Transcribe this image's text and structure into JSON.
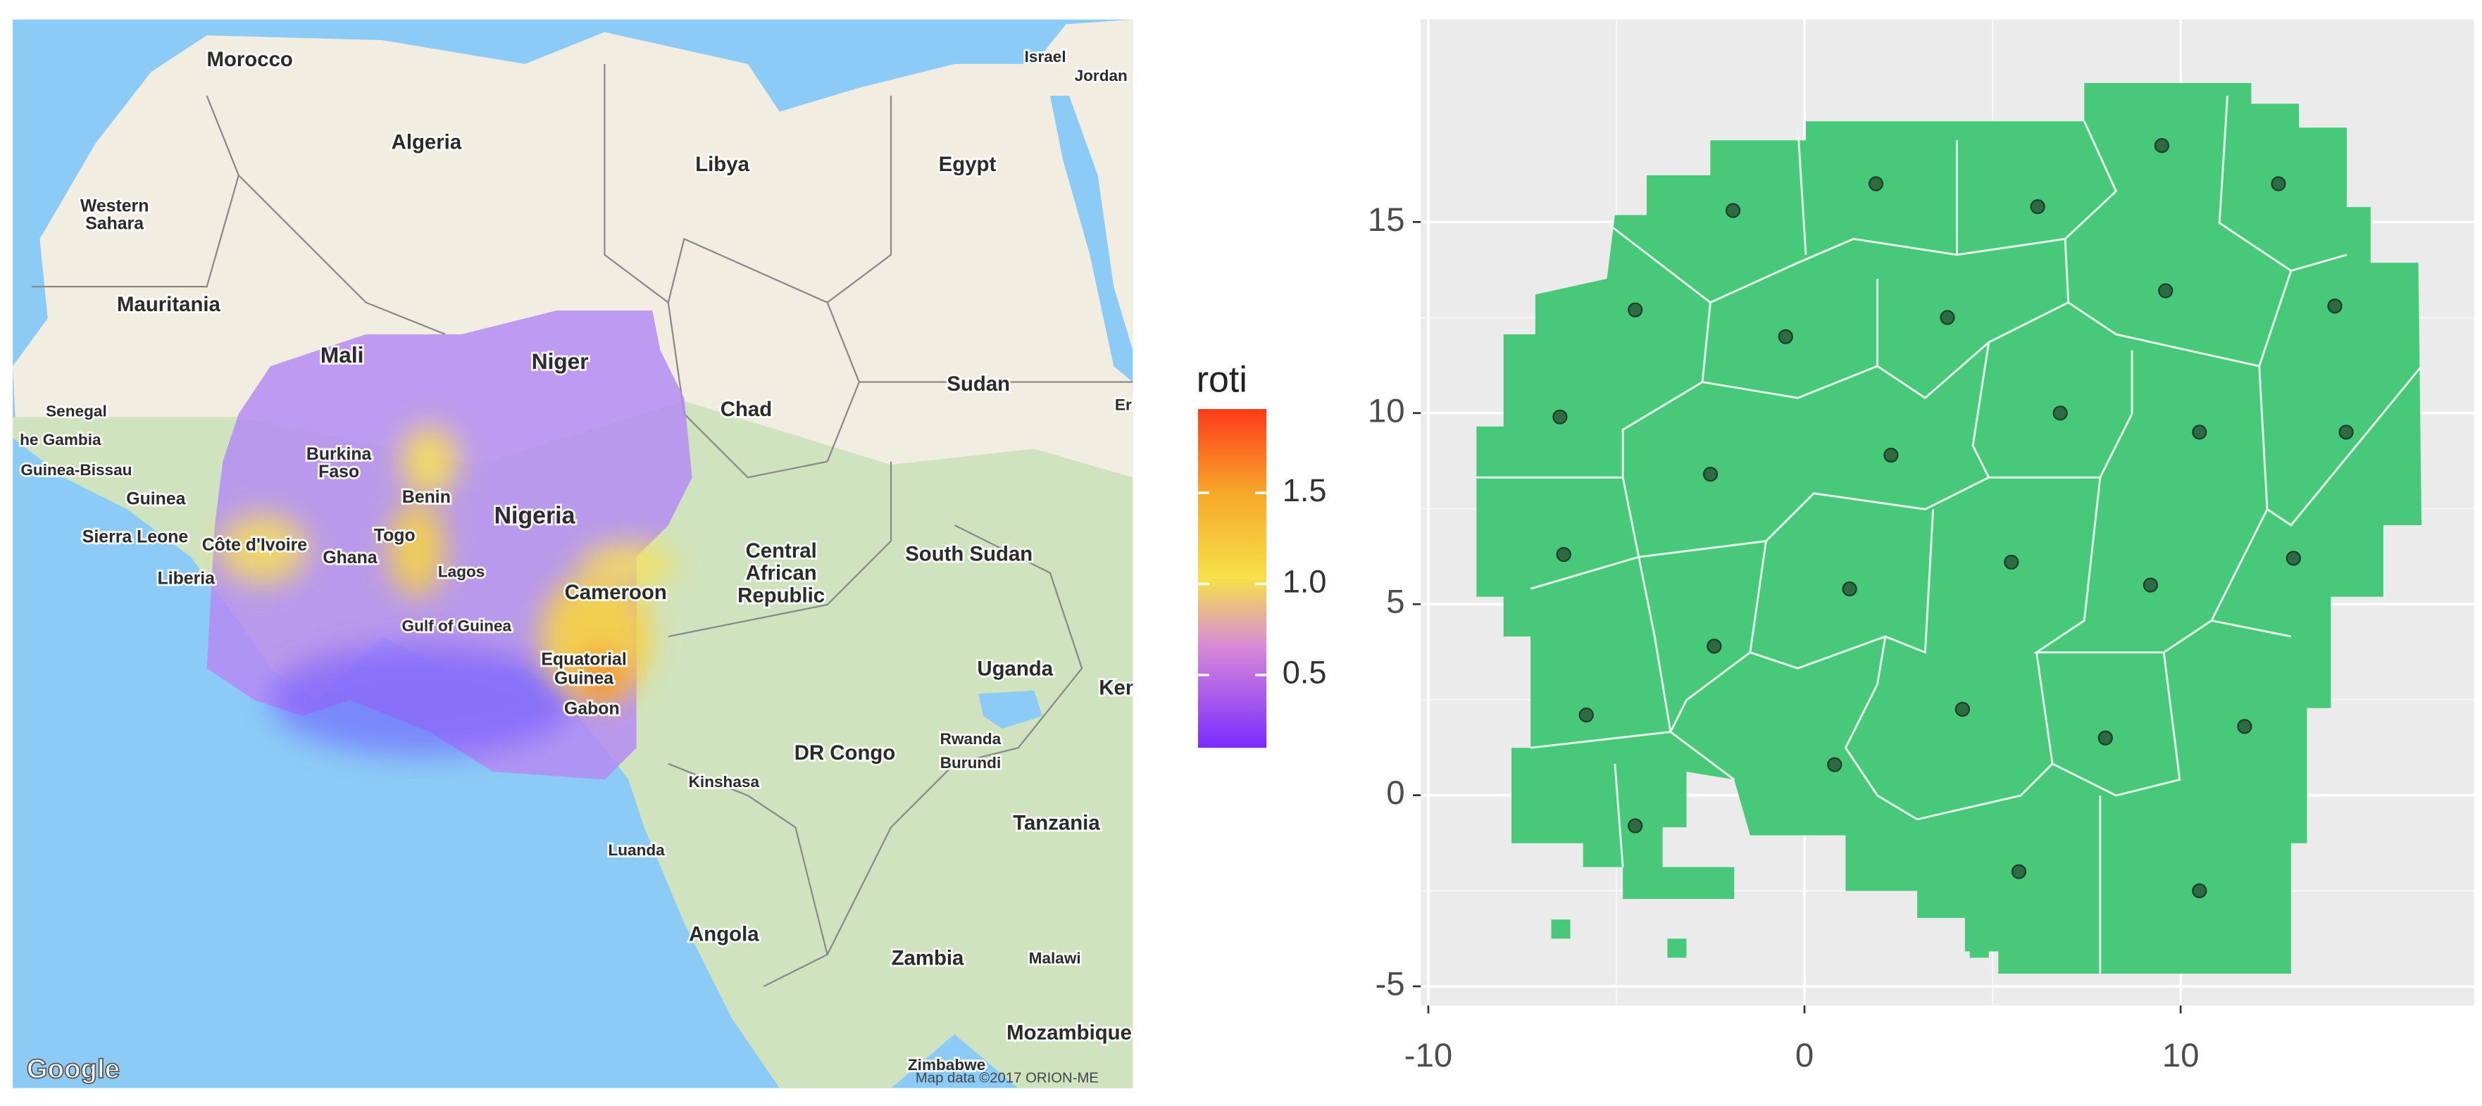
{
  "map": {
    "labels": [
      "Morocco",
      "Algeria",
      "Libya",
      "Egypt",
      "Israel",
      "Jordan",
      "Western",
      "Sahara",
      "Mauritania",
      "Mali",
      "Niger",
      "Chad",
      "Sudan",
      "Senegal",
      "he Gambia",
      "Guinea-Bissau",
      "Guinea",
      "Sierra Leone",
      "Liberia",
      "Côte d'Ivoire",
      "Burkina",
      "Faso",
      "Ghana",
      "Togo",
      "Benin",
      "Nigeria",
      "Lagos",
      "Gulf of Guinea",
      "Cameroon",
      "Equatorial",
      "Guinea",
      "Gabon",
      "Central",
      "African",
      "Republic",
      "South Sudan",
      "Uganda",
      "Ken",
      "Rwanda",
      "Burundi",
      "DR Congo",
      "Kinshasa",
      "Luanda",
      "Tanzania",
      "Angola",
      "Zambia",
      "Malawi",
      "Mozambique",
      "Zimbabwe",
      "Er"
    ],
    "attribution": [
      "Google",
      "Map data ©2017 ORION-ME"
    ],
    "legend": {
      "title": "roti",
      "range": [
        0.1,
        1.96
      ],
      "ticks": [
        0.5,
        {
          "value": 1,
          "label": "1.0"
        },
        1.5
      ]
    }
  },
  "chart_data": {
    "type": "scatter",
    "x": [
      -1.9,
      1.9,
      6.2,
      9.5,
      12.6,
      -4.5,
      -0.5,
      3.8,
      9.6,
      14.1,
      -6.5,
      -2.5,
      2.3,
      6.8,
      10.5,
      14.4,
      -6.4,
      1.2,
      5.5,
      9.2,
      13.0,
      -2.4,
      -5.8,
      4.2,
      8.0,
      11.7,
      0.8,
      -4.5,
      5.7,
      10.5
    ],
    "values": [
      15.3,
      16.0,
      15.4,
      17.0,
      16.0,
      12.7,
      12.0,
      12.5,
      13.2,
      12.8,
      9.9,
      8.4,
      8.9,
      10.0,
      9.5,
      9.5,
      6.3,
      5.4,
      6.1,
      5.5,
      6.2,
      3.9,
      2.1,
      2.25,
      1.5,
      1.8,
      0.8,
      -0.8,
      -2.0,
      -2.5
    ],
    "color": "#2e6b43",
    "xlim": [
      -10.2,
      17.8
    ],
    "ylim": [
      -5.5,
      20.3
    ],
    "xticks": [
      -10,
      0,
      10
    ],
    "yticks": [
      -5,
      0,
      5,
      10,
      15
    ],
    "grid": true
  }
}
